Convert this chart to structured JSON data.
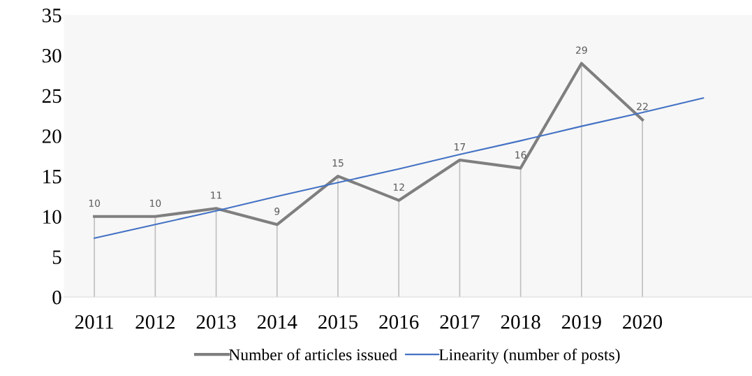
{
  "chart_data": {
    "type": "line",
    "categories": [
      "2011",
      "2012",
      "2013",
      "2014",
      "2015",
      "2016",
      "2017",
      "2018",
      "2019",
      "2020",
      null
    ],
    "series": [
      {
        "name": "Number of articles issued",
        "color": "#7f7f7f",
        "values": [
          10,
          10,
          11,
          9,
          15,
          12,
          17,
          16,
          29,
          22,
          null
        ],
        "value_labels": [
          "10",
          "10",
          "11",
          "9",
          "15",
          "12",
          "17",
          "16",
          "29",
          "22",
          null
        ]
      },
      {
        "name": "Linearity (number of posts)",
        "color": "#4472c4",
        "type": "line",
        "values": [
          7.3,
          9.0,
          10.7,
          12.5,
          14.2,
          15.9,
          17.7,
          19.4,
          21.2,
          22.9,
          24.7
        ]
      }
    ],
    "ylim": [
      0,
      35
    ],
    "yticks": [
      0,
      5,
      10,
      15,
      20,
      25,
      30,
      35
    ],
    "legend": "bottom",
    "grid": "x",
    "marker": "none"
  }
}
